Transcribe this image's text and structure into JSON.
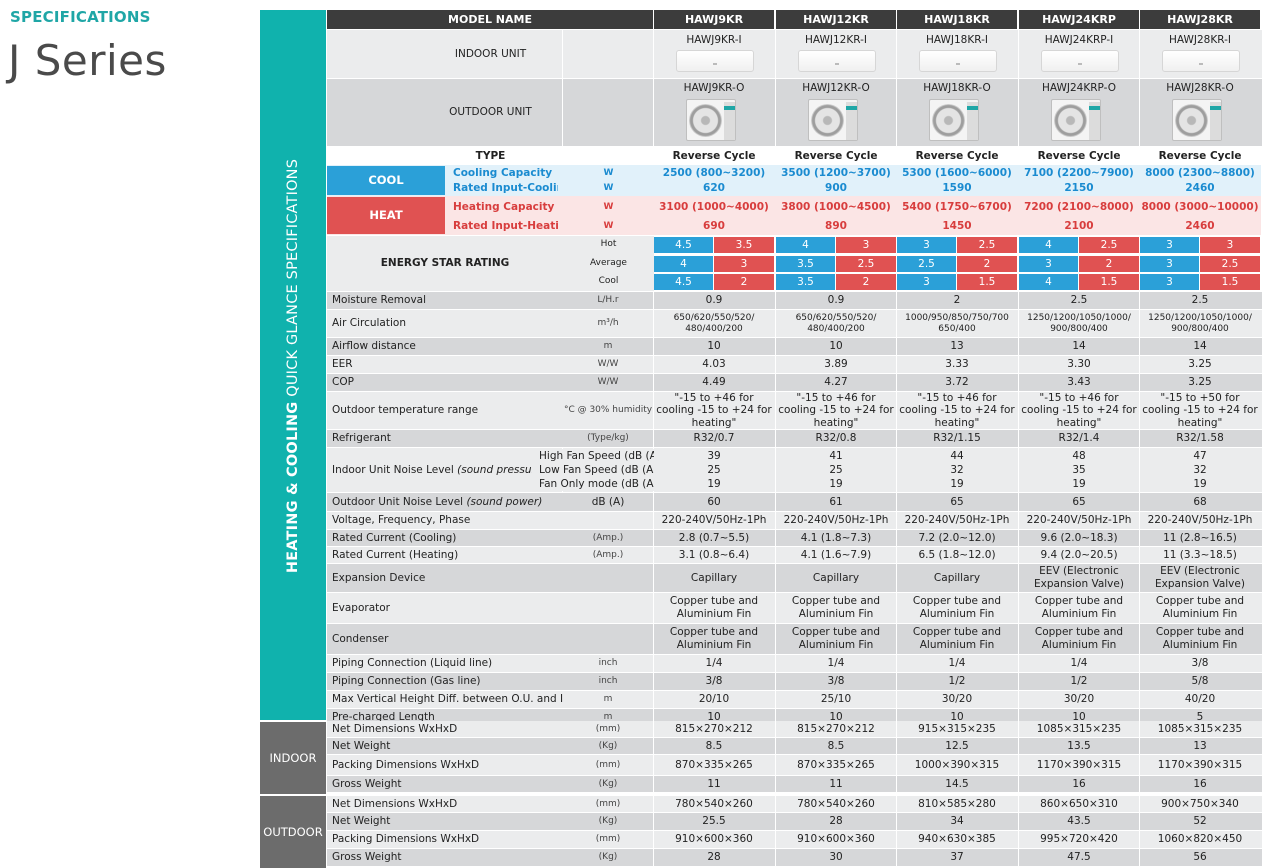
{
  "header": {
    "specifications": "SPECIFICATIONS",
    "series": "J Series"
  },
  "sidebar": {
    "bold": "HEATING & COOLING",
    "light": "QUICK GLANCE SPECIFICATIONS",
    "indoor": "INDOOR",
    "outdoor": "OUTDOOR"
  },
  "model_label": "MODEL NAME",
  "models": [
    "HAWJ9KR",
    "HAWJ12KR",
    "HAWJ18KR",
    "HAWJ24KRP",
    "HAWJ28KR"
  ],
  "indoor_label": "INDOOR UNIT",
  "indoor_units": [
    "HAWJ9KR-I",
    "HAWJ12KR-I",
    "HAWJ18KR-I",
    "HAWJ24KRP-I",
    "HAWJ28KR-I"
  ],
  "outdoor_label": "OUTDOOR UNIT",
  "outdoor_units": [
    "HAWJ9KR-O",
    "HAWJ12KR-O",
    "HAWJ18KR-O",
    "HAWJ24KRP-O",
    "HAWJ28KR-O"
  ],
  "type_label": "TYPE",
  "types": [
    "Reverse Cycle",
    "Reverse Cycle",
    "Reverse Cycle",
    "Reverse Cycle",
    "Reverse Cycle"
  ],
  "cool": {
    "label": "COOL",
    "capacity_label": "Cooling Capacity",
    "input_label": "Rated Input-Cooling",
    "unit": "W",
    "capacity": [
      "2500 (800~3200)",
      "3500 (1200~3700)",
      "5300 (1600~6000)",
      "7100 (2200~7900)",
      "8000 (2300~8800)"
    ],
    "input": [
      "620",
      "900",
      "1590",
      "2150",
      "2460"
    ]
  },
  "heat": {
    "label": "HEAT",
    "capacity_label": "Heating Capacity",
    "input_label": "Rated Input-Heating",
    "unit": "W",
    "capacity": [
      "3100 (1000~4000)",
      "3800 (1000~4500)",
      "5400 (1750~6700)",
      "7200 (2100~8000)",
      "8000 (3000~10000)"
    ],
    "input": [
      "690",
      "890",
      "1450",
      "2100",
      "2460"
    ]
  },
  "energy": {
    "label": "ENERGY STAR RATING",
    "rows": [
      {
        "name": "Hot",
        "vals": [
          [
            "4.5",
            "3.5"
          ],
          [
            "4",
            "3"
          ],
          [
            "3",
            "2.5"
          ],
          [
            "4",
            "2.5"
          ],
          [
            "3",
            "3"
          ]
        ]
      },
      {
        "name": "Average",
        "vals": [
          [
            "4",
            "3"
          ],
          [
            "3.5",
            "2.5"
          ],
          [
            "2.5",
            "2"
          ],
          [
            "3",
            "2"
          ],
          [
            "3",
            "2.5"
          ]
        ]
      },
      {
        "name": "Cool",
        "vals": [
          [
            "4.5",
            "2"
          ],
          [
            "3.5",
            "2"
          ],
          [
            "3",
            "1.5"
          ],
          [
            "4",
            "1.5"
          ],
          [
            "3",
            "1.5"
          ]
        ]
      }
    ]
  },
  "specs": [
    {
      "label": "Moisture Removal",
      "unit": "L/H.r",
      "vals": [
        "0.9",
        "0.9",
        "2",
        "2.5",
        "2.5"
      ]
    },
    {
      "label": "Air Circulation",
      "unit": "m³/h",
      "vals": [
        "650/620/550/520/ 480/400/200",
        "650/620/550/520/ 480/400/200",
        "1000/950/850/750/700 650/400",
        "1250/1200/1050/1000/ 900/800/400",
        "1250/1200/1050/1000/ 900/800/400"
      ]
    },
    {
      "label": "Airflow distance",
      "unit": "m",
      "vals": [
        "10",
        "10",
        "13",
        "14",
        "14"
      ]
    },
    {
      "label": "EER",
      "unit": "W/W",
      "vals": [
        "4.03",
        "3.89",
        "3.33",
        "3.30",
        "3.25"
      ]
    },
    {
      "label": "COP",
      "unit": "W/W",
      "vals": [
        "4.49",
        "4.27",
        "3.72",
        "3.43",
        "3.25"
      ]
    },
    {
      "label": "Outdoor temperature range",
      "unit": "°C @ 30% humidity",
      "vals": [
        "\"-15 to +46 for cooling -15 to +24 for heating\"",
        "\"-15 to +46 for cooling -15 to +24 for heating\"",
        "\"-15 to +46 for cooling -15 to +24 for heating\"",
        "\"-15 to +46 for cooling -15 to +24 for heating\"",
        "\"-15 to +50 for cooling -15 to +24 for heating\""
      ]
    },
    {
      "label": "Refrigerant",
      "unit": "(Type/kg)",
      "vals": [
        "R32/0.7",
        "R32/0.8",
        "R32/1.15",
        "R32/1.4",
        "R32/1.58"
      ]
    }
  ],
  "noise_indoor": {
    "label": "Indoor Unit Noise Level",
    "label_it": "(sound pressure)",
    "sub": [
      "High Fan Speed (dB (A))",
      "Low Fan Speed (dB (A))",
      "Fan Only mode (dB (A))"
    ],
    "vals": [
      [
        "39",
        "25",
        "19"
      ],
      [
        "41",
        "25",
        "19"
      ],
      [
        "44",
        "32",
        "19"
      ],
      [
        "48",
        "35",
        "19"
      ],
      [
        "47",
        "32",
        "19"
      ]
    ]
  },
  "noise_outdoor": {
    "label": "Outdoor Unit Noise Level",
    "label_it": "(sound power)",
    "unit": "dB (A)",
    "vals": [
      "60",
      "61",
      "65",
      "65",
      "68"
    ]
  },
  "specs2": [
    {
      "label": "Voltage, Frequency, Phase",
      "unit": "",
      "vals": [
        "220-240V/50Hz-1Ph",
        "220-240V/50Hz-1Ph",
        "220-240V/50Hz-1Ph",
        "220-240V/50Hz-1Ph",
        "220-240V/50Hz-1Ph"
      ]
    },
    {
      "label": "Rated Current (Cooling)",
      "unit": "(Amp.)",
      "vals": [
        "2.8 (0.7~5.5)",
        "4.1 (1.8~7.3)",
        "7.2 (2.0~12.0)",
        "9.6 (2.0~18.3)",
        "11 (2.8~16.5)"
      ]
    },
    {
      "label": "Rated Current (Heating)",
      "unit": "(Amp.)",
      "vals": [
        "3.1 (0.8~6.4)",
        "4.1 (1.6~7.9)",
        "6.5 (1.8~12.0)",
        "9.4 (2.0~20.5)",
        "11 (3.3~18.5)"
      ]
    },
    {
      "label": "Expansion Device",
      "unit": "",
      "vals": [
        "Capillary",
        "Capillary",
        "Capillary",
        "EEV (Electronic Expansion Valve)",
        "EEV (Electronic Expansion Valve)"
      ]
    },
    {
      "label": "Evaporator",
      "unit": "",
      "vals": [
        "Copper tube and Aluminium Fin",
        "Copper tube and Aluminium Fin",
        "Copper tube and Aluminium Fin",
        "Copper tube and Aluminium Fin",
        "Copper tube and Aluminium Fin"
      ]
    },
    {
      "label": "Condenser",
      "unit": "",
      "vals": [
        "Copper tube and Aluminium Fin",
        "Copper tube and Aluminium Fin",
        "Copper tube and Aluminium Fin",
        "Copper tube and Aluminium Fin",
        "Copper tube and Aluminium Fin"
      ]
    },
    {
      "label": "Piping Connection (Liquid line)",
      "unit": "inch",
      "vals": [
        "1/4",
        "1/4",
        "1/4",
        "1/4",
        "3/8"
      ]
    },
    {
      "label": "Piping Connection (Gas line)",
      "unit": "inch",
      "vals": [
        "3/8",
        "3/8",
        "1/2",
        "1/2",
        "5/8"
      ]
    },
    {
      "label": "Max Vertical Height Diff. between O.U. and I.U.",
      "unit": "m",
      "vals": [
        "20/10",
        "25/10",
        "30/20",
        "30/20",
        "40/20"
      ]
    },
    {
      "label": "Pre-charged Length",
      "unit": "m",
      "vals": [
        "10",
        "10",
        "10",
        "10",
        "5"
      ]
    }
  ],
  "indoor_specs": [
    {
      "label": "Net Dimensions WxHxD",
      "unit": "(mm)",
      "vals": [
        "815×270×212",
        "815×270×212",
        "915×315×235",
        "1085×315×235",
        "1085×315×235"
      ]
    },
    {
      "label": "Net Weight",
      "unit": "(Kg)",
      "vals": [
        "8.5",
        "8.5",
        "12.5",
        "13.5",
        "13"
      ]
    },
    {
      "label": "Packing Dimensions WxHxD",
      "unit": "(mm)",
      "vals": [
        "870×335×265",
        "870×335×265",
        "1000×390×315",
        "1170×390×315",
        "1170×390×315"
      ]
    },
    {
      "label": "Gross Weight",
      "unit": "(Kg)",
      "vals": [
        "11",
        "11",
        "14.5",
        "16",
        "16"
      ]
    }
  ],
  "outdoor_specs": [
    {
      "label": "Net Dimensions WxHxD",
      "unit": "(mm)",
      "vals": [
        "780×540×260",
        "780×540×260",
        "810×585×280",
        "860×650×310",
        "900×750×340"
      ]
    },
    {
      "label": "Net Weight",
      "unit": "(Kg)",
      "vals": [
        "25.5",
        "28",
        "34",
        "43.5",
        "52"
      ]
    },
    {
      "label": "Packing Dimensions WxHxD",
      "unit": "(mm)",
      "vals": [
        "910×600×360",
        "910×600×360",
        "940×630×385",
        "995×720×420",
        "1060×820×450"
      ]
    },
    {
      "label": "Gross Weight",
      "unit": "(Kg)",
      "vals": [
        "28",
        "30",
        "37",
        "47.5",
        "56"
      ]
    }
  ]
}
